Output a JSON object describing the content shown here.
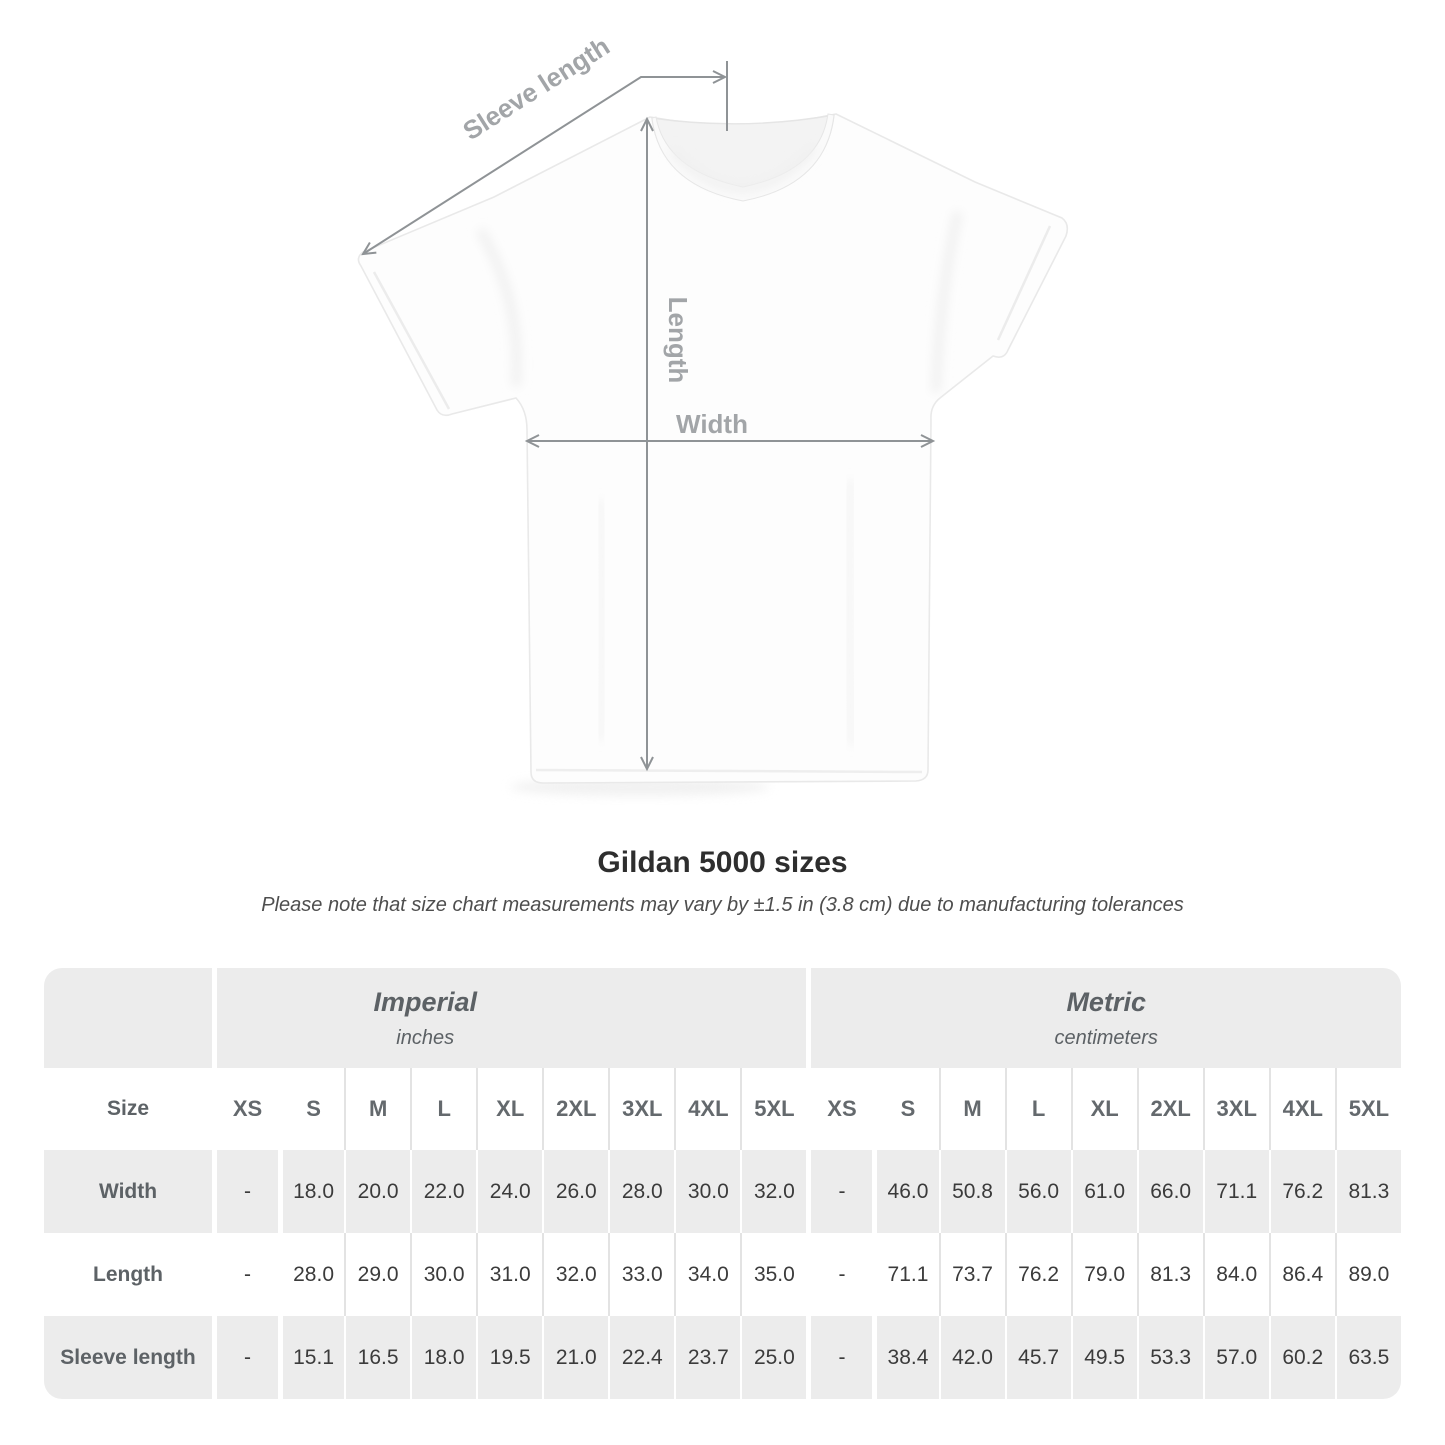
{
  "diagram": {
    "sleeve_label": "Sleeve length",
    "length_label": "Length",
    "width_label": "Width"
  },
  "heading": {
    "title": "Gildan 5000 sizes",
    "subtitle": "Please note that size chart measurements may vary by ±1.5 in (3.8 cm) due to manufacturing tolerances"
  },
  "table": {
    "corner_label": "Size",
    "groups": [
      {
        "name": "Imperial",
        "unit": "inches"
      },
      {
        "name": "Metric",
        "unit": "centimeters"
      }
    ],
    "sizes": [
      "XS",
      "S",
      "M",
      "L",
      "XL",
      "2XL",
      "3XL",
      "4XL",
      "5XL"
    ],
    "rows": [
      {
        "label": "Width",
        "imperial": [
          "-",
          "18.0",
          "20.0",
          "22.0",
          "24.0",
          "26.0",
          "28.0",
          "30.0",
          "32.0"
        ],
        "metric": [
          "-",
          "46.0",
          "50.8",
          "56.0",
          "61.0",
          "66.0",
          "71.1",
          "76.2",
          "81.3"
        ]
      },
      {
        "label": "Length",
        "imperial": [
          "-",
          "28.0",
          "29.0",
          "30.0",
          "31.0",
          "32.0",
          "33.0",
          "34.0",
          "35.0"
        ],
        "metric": [
          "-",
          "71.1",
          "73.7",
          "76.2",
          "79.0",
          "81.3",
          "84.0",
          "86.4",
          "89.0"
        ]
      },
      {
        "label": "Sleeve length",
        "imperial": [
          "-",
          "15.1",
          "16.5",
          "18.0",
          "19.5",
          "21.0",
          "22.4",
          "23.7",
          "25.0"
        ],
        "metric": [
          "-",
          "38.4",
          "42.0",
          "45.7",
          "49.5",
          "53.3",
          "57.0",
          "60.2",
          "63.5"
        ]
      }
    ]
  },
  "colors": {
    "band_background": "#ececec",
    "alt_row_background": "#ececec",
    "value_text": "#3b3b3b",
    "label_text": "#5d6266",
    "arrow": "#8f9396",
    "measure_label": "#a2a5a8",
    "title_text": "#2e2e2e"
  }
}
